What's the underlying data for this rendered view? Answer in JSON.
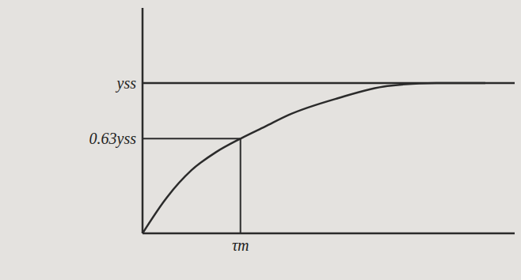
{
  "chart_data": {
    "type": "line",
    "x": [
      0,
      0.25,
      0.5,
      0.75,
      1,
      1.25,
      1.5,
      2,
      2.5,
      3,
      3.5
    ],
    "values": [
      0,
      0.24,
      0.42,
      0.54,
      0.63,
      0.71,
      0.79,
      0.9,
      0.98,
      1,
      1
    ],
    "color": "#2b2b2b",
    "xlim": [
      0,
      3.8
    ],
    "ylim": [
      0,
      1.5
    ],
    "xticks": [
      {
        "value": 1,
        "label": "τm"
      }
    ],
    "yticks": [
      {
        "value": 0.63,
        "label": "0.63yss"
      },
      {
        "value": 1,
        "label": "yss"
      }
    ],
    "steady_state": 1,
    "marked_point": {
      "x": 1,
      "y": 0.63
    },
    "grid": false
  }
}
